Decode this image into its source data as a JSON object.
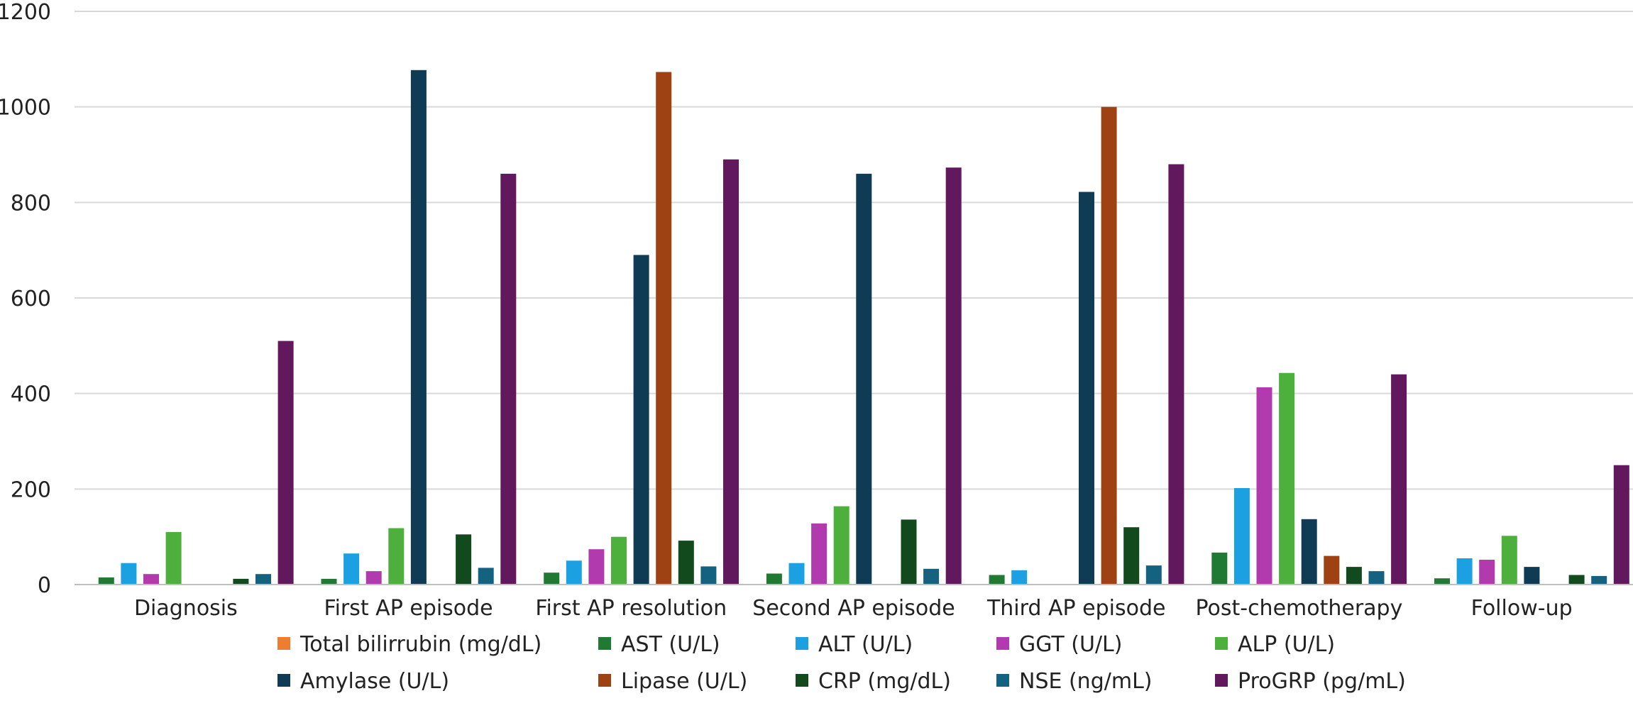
{
  "chart_data": {
    "type": "bar",
    "title": "",
    "xlabel": "",
    "ylabel": "",
    "ylim": [
      0,
      1200
    ],
    "yticks": [
      0,
      200,
      400,
      600,
      800,
      1000,
      1200
    ],
    "grid": true,
    "legend_position": "bottom",
    "categories": [
      "Diagnosis",
      "First AP episode",
      "First AP resolution",
      "Second AP episode",
      "Third AP episode",
      "Post-chemotherapy",
      "Follow-up"
    ],
    "series": [
      {
        "name": "Total bilirrubin (mg/dL)",
        "color": "#ED7D31",
        "values": [
          1,
          1,
          1,
          1,
          1,
          1,
          1
        ]
      },
      {
        "name": "AST (U/L)",
        "color": "#217A33",
        "values": [
          15,
          12,
          25,
          23,
          20,
          67,
          13
        ]
      },
      {
        "name": "ALT (U/L)",
        "color": "#1BA1E2",
        "values": [
          45,
          65,
          50,
          45,
          30,
          202,
          55
        ]
      },
      {
        "name": "GGT (U/L)",
        "color": "#B23AAF",
        "values": [
          22,
          28,
          74,
          128,
          0,
          413,
          52
        ]
      },
      {
        "name": "ALP (U/L)",
        "color": "#4DB03D",
        "values": [
          110,
          118,
          100,
          164,
          0,
          443,
          102
        ]
      },
      {
        "name": "Amylase (U/L)",
        "color": "#0F3B55",
        "values": [
          0,
          1077,
          690,
          860,
          822,
          137,
          37
        ]
      },
      {
        "name": "Lipase (U/L)",
        "color": "#9E4213",
        "values": [
          0,
          0,
          1073,
          0,
          1000,
          60,
          0
        ]
      },
      {
        "name": "CRP (mg/dL)",
        "color": "#124A1E",
        "values": [
          12,
          105,
          92,
          136,
          120,
          37,
          20
        ]
      },
      {
        "name": "NSE (ng/mL)",
        "color": "#136380",
        "values": [
          22,
          35,
          38,
          33,
          40,
          28,
          18
        ]
      },
      {
        "name": "ProGRP (pg/mL)",
        "color": "#62185C",
        "values": [
          510,
          860,
          890,
          873,
          880,
          440,
          250
        ]
      }
    ]
  }
}
